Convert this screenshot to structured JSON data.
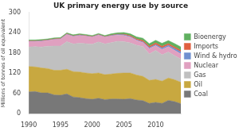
{
  "chart_data": {
    "type": "area",
    "title": "UK primary energy use by source",
    "ylabel": "Millions of tonnes of oil equivalent",
    "x": [
      1990,
      1991,
      1992,
      1993,
      1994,
      1995,
      1996,
      1997,
      1998,
      1999,
      2000,
      2001,
      2002,
      2003,
      2004,
      2005,
      2006,
      2007,
      2008,
      2009,
      2010,
      2011,
      2012,
      2013,
      2014
    ],
    "series": [
      {
        "name": "Coal",
        "color": "#787878",
        "values": [
          65,
          66,
          62,
          62,
          56,
          55,
          59,
          50,
          48,
          45,
          43,
          46,
          42,
          44,
          44,
          43,
          45,
          41,
          39,
          31,
          34,
          31,
          40,
          36,
          30
        ]
      },
      {
        "name": "Oil",
        "color": "#c8a840",
        "values": [
          75,
          73,
          74,
          72,
          73,
          74,
          73,
          75,
          76,
          76,
          76,
          75,
          74,
          74,
          76,
          78,
          76,
          74,
          72,
          68,
          68,
          66,
          66,
          65,
          63
        ]
      },
      {
        "name": "Gas",
        "color": "#c0c0c0",
        "values": [
          58,
          60,
          62,
          66,
          72,
          72,
          82,
          82,
          85,
          87,
          87,
          92,
          91,
          93,
          95,
          93,
          89,
          88,
          88,
          78,
          86,
          78,
          77,
          71,
          69
        ]
      },
      {
        "name": "Nuclear",
        "color": "#e0a0c0",
        "values": [
          16,
          15,
          17,
          17,
          19,
          20,
          21,
          22,
          23,
          22,
          21,
          20,
          20,
          20,
          18,
          18,
          17,
          14,
          12,
          16,
          14,
          16,
          16,
          16,
          15
        ]
      },
      {
        "name": "Wind & hydro",
        "color": "#7090d0",
        "values": [
          1,
          1,
          1,
          1,
          1,
          1,
          1,
          1,
          1,
          1,
          1,
          1,
          1,
          1,
          2,
          2,
          2,
          2,
          2,
          3,
          3,
          4,
          4,
          5,
          6
        ]
      },
      {
        "name": "Imports",
        "color": "#e06040",
        "values": [
          1,
          1,
          1,
          1,
          1,
          1,
          1,
          1,
          1,
          1,
          1,
          1,
          1,
          1,
          1,
          2,
          3,
          3,
          4,
          4,
          5,
          5,
          5,
          5,
          5
        ]
      },
      {
        "name": "Bioenergy",
        "color": "#60b060",
        "values": [
          3,
          3,
          3,
          3,
          3,
          3,
          3,
          3,
          3,
          3,
          3,
          3,
          3,
          4,
          4,
          5,
          5,
          6,
          7,
          8,
          8,
          9,
          9,
          10,
          10
        ]
      }
    ],
    "xlim": [
      1990,
      2014
    ],
    "xticks": [
      1990,
      1995,
      2000,
      2005,
      2010
    ],
    "ylim": [
      0,
      300
    ],
    "yticks": [
      0,
      60,
      120,
      180,
      240,
      300
    ],
    "stacked": true,
    "grid": false,
    "legend": "right"
  }
}
